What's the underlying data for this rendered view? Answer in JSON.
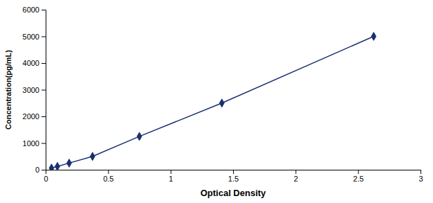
{
  "chart_data": {
    "type": "line",
    "x": [
      0.047,
      0.094,
      0.188,
      0.375,
      0.75,
      1.41,
      2.625
    ],
    "values": [
      62.5,
      125,
      250,
      500,
      1250,
      2500,
      5000
    ],
    "color": "#1a3070",
    "marker": "diamond",
    "line_style": "solid",
    "xlabel": "Optical Density",
    "ylabel": "Concentration(pg/mL)",
    "xlim": [
      0,
      3
    ],
    "ylim": [
      0,
      6000
    ],
    "xticks": [
      0,
      0.5,
      1,
      1.5,
      2,
      2.5,
      3
    ],
    "yticks": [
      0,
      1000,
      2000,
      3000,
      4000,
      5000,
      6000
    ]
  }
}
